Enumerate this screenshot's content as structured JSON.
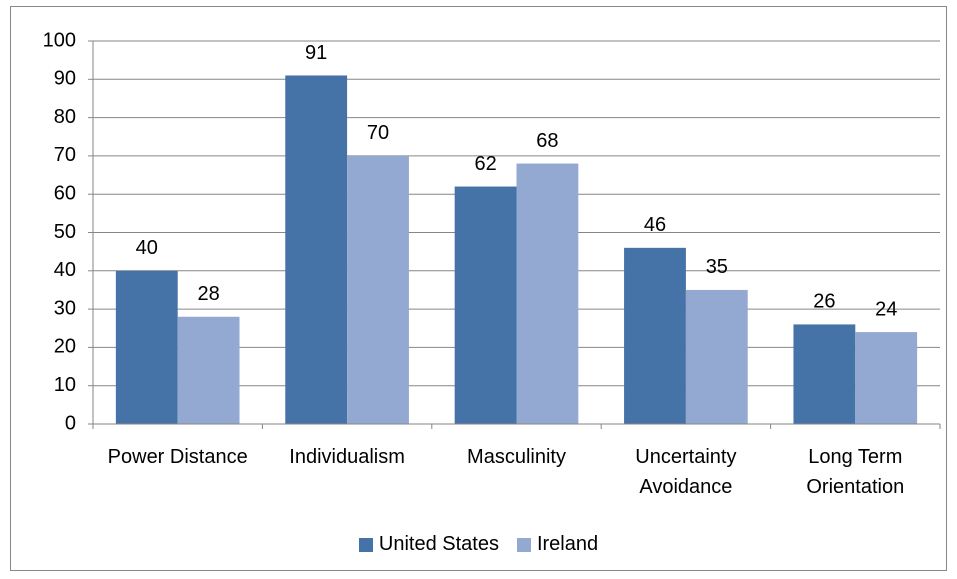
{
  "chart_data": {
    "type": "bar",
    "categories": [
      "Power Distance",
      "Individualism",
      "Masculinity",
      "Uncertainty Avoidance",
      "Long Term Orientation"
    ],
    "series": [
      {
        "name": "United States",
        "color": "#4572a7",
        "values": [
          40,
          91,
          62,
          46,
          26
        ]
      },
      {
        "name": "Ireland",
        "color": "#94a9d2",
        "values": [
          28,
          70,
          68,
          35,
          24
        ]
      }
    ],
    "ylim": [
      0,
      100
    ],
    "yticks": [
      0,
      10,
      20,
      30,
      40,
      50,
      60,
      70,
      80,
      90,
      100
    ],
    "grid": true,
    "legend": "bottom"
  }
}
